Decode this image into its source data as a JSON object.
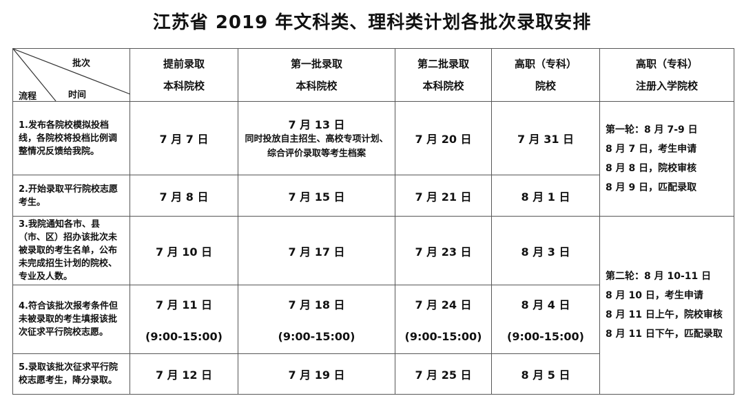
{
  "title": "江苏省 2019 年文科类、理科类计划各批次录取安排",
  "corner": {
    "batch": "批次",
    "process": "流程",
    "time": "时间"
  },
  "columns": [
    [
      "提前录取",
      "本科院校"
    ],
    [
      "第一批录取",
      "本科院校"
    ],
    [
      "第二批录取",
      "本科院校"
    ],
    [
      "高职（专科）",
      "院校"
    ],
    [
      "高职（专科）",
      "注册入学院校"
    ]
  ],
  "rows": [
    {
      "process": "1.发布各院校模拟投档线，各院校将投档比例调整情况反馈给我院。",
      "dates": [
        "7 月 7 日",
        "7 月 13 日",
        "7 月 20 日",
        "7 月 31 日"
      ],
      "note": "同时投放自主招生、高校专项计划、综合评价录取等考生档案"
    },
    {
      "process": "2.开始录取平行院校志愿考生。",
      "dates": [
        "7 月 8 日",
        "7 月 15 日",
        "7 月 21 日",
        "8 月 1 日"
      ]
    },
    {
      "process": "3.我院通知各市、县（市、区）招办该批次未被录取的考生名单，公布未完成招生计划的院校、专业及人数。",
      "dates": [
        "7 月 10 日",
        "7 月 17 日",
        "7 月 23 日",
        "8 月 3 日"
      ]
    },
    {
      "process": "4.符合该批次报考条件但未被录取的考生填报该批次征求平行院校志愿。",
      "dates": [
        "7 月 11 日",
        "7 月 18 日",
        "7 月 24 日",
        "8 月 4 日"
      ],
      "time": "(9:00-15:00)"
    },
    {
      "process": "5.录取该批次征求平行院校志愿考生，降分录取。",
      "dates": [
        "7 月 12 日",
        "7 月 19 日",
        "7 月 25 日",
        "8 月 5 日"
      ]
    }
  ],
  "registration": {
    "round1": [
      "第一轮：8 月 7-9 日",
      "8 月 7 日，考生申请",
      "8 月 8 日，院校审核",
      "8 月 9 日，匹配录取"
    ],
    "round2": [
      "第二轮：8 月 10-11 日",
      "8 月 10 日，考生申请",
      "8 月 11 日上午，院校审核",
      "8 月 11 日下午，匹配录取"
    ]
  }
}
